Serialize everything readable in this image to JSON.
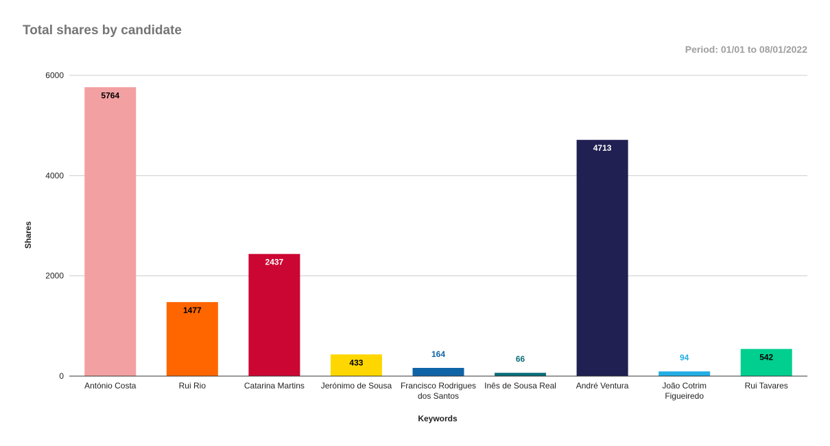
{
  "chart_data": {
    "type": "bar",
    "title": "Total shares by candidate",
    "subtitle": "Period: 01/01 to 08/01/2022",
    "xlabel": "Keywords",
    "ylabel": "Shares",
    "ylim": [
      0,
      6000
    ],
    "yticks": [
      0,
      2000,
      4000,
      6000
    ],
    "grid": true,
    "categories": [
      [
        "António Costa"
      ],
      [
        "Rui Rio"
      ],
      [
        "Catarina Martins"
      ],
      [
        "Jerónimo de Sousa"
      ],
      [
        "Francisco Rodrigues",
        "dos Santos"
      ],
      [
        "Inês de Sousa Real"
      ],
      [
        "André Ventura"
      ],
      [
        "João Cotrim",
        "Figueiredo"
      ],
      [
        "Rui Tavares"
      ]
    ],
    "values": [
      5764,
      1477,
      2437,
      433,
      164,
      66,
      4713,
      94,
      542
    ],
    "colors": [
      "#f2a0a1",
      "#ff6600",
      "#cc0633",
      "#ffd700",
      "#0f64a8",
      "#0b6e79",
      "#202052",
      "#23aee5",
      "#00cf8f"
    ],
    "label_colors": [
      "#000000",
      "#000000",
      "#ffffff",
      "#000000",
      "#0f64a8",
      "#0b6e79",
      "#ffffff",
      "#23aee5",
      "#000000"
    ]
  }
}
